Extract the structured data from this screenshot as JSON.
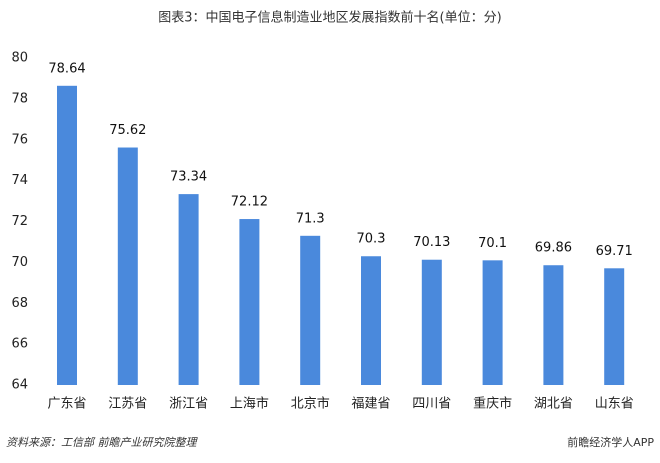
{
  "chart_data": {
    "type": "bar",
    "title": "图表3：中国电子信息制造业地区发展指数前十名(单位：分)",
    "categories": [
      "广东省",
      "江苏省",
      "浙江省",
      "上海市",
      "北京市",
      "福建省",
      "四川省",
      "重庆市",
      "湖北省",
      "山东省"
    ],
    "values": [
      78.64,
      75.62,
      73.34,
      72.12,
      71.3,
      70.3,
      70.13,
      70.1,
      69.86,
      69.71
    ],
    "color": "#4a89dc",
    "ylim": [
      64,
      80
    ],
    "yticks": [
      64,
      66,
      68,
      70,
      72,
      74,
      76,
      78,
      80
    ],
    "grid": false,
    "source": "资料来源：工信部 前瞻产业研究院整理",
    "publisher": "前瞻经济学人APP"
  }
}
